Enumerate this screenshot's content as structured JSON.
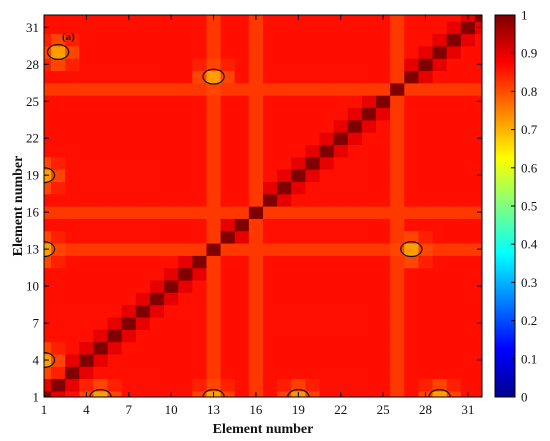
{
  "chart_data": {
    "type": "heatmap",
    "panel_label": "(a)",
    "xlabel": "Element number",
    "ylabel": "Element number",
    "x_ticks": [
      "1",
      "4",
      "7",
      "10",
      "13",
      "16",
      "19",
      "22",
      "25",
      "28",
      "31"
    ],
    "y_ticks": [
      "1",
      "4",
      "7",
      "10",
      "13",
      "16",
      "19",
      "22",
      "25",
      "28",
      "31"
    ],
    "xlim": [
      1,
      32
    ],
    "ylim": [
      1,
      32
    ],
    "grid_size": 32,
    "color_range": [
      0,
      1
    ],
    "colorbar_ticks": [
      "0",
      "0.1",
      "0.2",
      "0.3",
      "0.4",
      "0.5",
      "0.6",
      "0.7",
      "0.8",
      "0.9",
      "1"
    ],
    "colormap": [
      "#00008f",
      "#0000ff",
      "#00ffff",
      "#ffff00",
      "#ff0000",
      "#800000"
    ],
    "values": {
      "diagonal": 1.0,
      "near_diagonal": 0.9,
      "background": 0.86,
      "band_elements": [
        13,
        16,
        26
      ],
      "band_value": 0.82,
      "contour_level": 0.75,
      "low_patches": [
        {
          "x": 2,
          "y": 29,
          "value": 0.72
        },
        {
          "x": 13,
          "y": 27,
          "value": 0.72
        },
        {
          "x": 1,
          "y": 19,
          "value": 0.72
        },
        {
          "x": 1,
          "y": 13,
          "value": 0.72
        },
        {
          "x": 27,
          "y": 13,
          "value": 0.72
        },
        {
          "x": 1,
          "y": 4,
          "value": 0.72
        },
        {
          "x": 5,
          "y": 1,
          "value": 0.72
        },
        {
          "x": 13,
          "y": 1,
          "value": 0.72
        },
        {
          "x": 19,
          "y": 1,
          "value": 0.73
        },
        {
          "x": 29,
          "y": 1,
          "value": 0.72
        }
      ]
    }
  }
}
